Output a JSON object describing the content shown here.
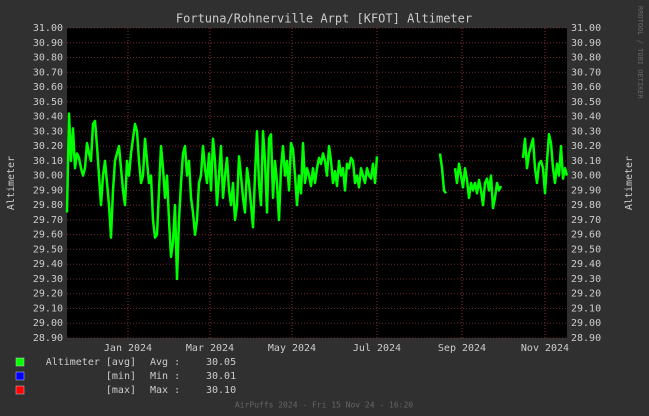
{
  "chart_data": {
    "type": "line",
    "title": "Fortuna/Rohnerville Arpt [KFOT] Altimeter",
    "y_label": "Altimeter",
    "credit": "RRDTOOL / TOBI OETIKER",
    "footer": "AirPuffs 2024 - Fri 15 Nov 24 - 16:20",
    "xlim": [
      0,
      500
    ],
    "xticks": [
      {
        "value": 61,
        "label": "Jan 2024"
      },
      {
        "value": 143,
        "label": "Mar 2024"
      },
      {
        "value": 225,
        "label": "May 2024"
      },
      {
        "value": 310,
        "label": "Jul 2024"
      },
      {
        "value": 395,
        "label": "Sep 2024"
      },
      {
        "value": 478,
        "label": "Nov 2024"
      }
    ],
    "ylim": [
      28.9,
      31.0
    ],
    "yticks": [
      {
        "value": 28.9,
        "label": "28.90"
      },
      {
        "value": 29.0,
        "label": "29.00"
      },
      {
        "value": 29.1,
        "label": "29.10"
      },
      {
        "value": 29.2,
        "label": "29.20"
      },
      {
        "value": 29.3,
        "label": "29.30"
      },
      {
        "value": 29.4,
        "label": "29.40"
      },
      {
        "value": 29.5,
        "label": "29.50"
      },
      {
        "value": 29.6,
        "label": "29.60"
      },
      {
        "value": 29.7,
        "label": "29.70"
      },
      {
        "value": 29.8,
        "label": "29.80"
      },
      {
        "value": 29.9,
        "label": "29.90"
      },
      {
        "value": 30.0,
        "label": "30.00"
      },
      {
        "value": 30.1,
        "label": "30.10"
      },
      {
        "value": 30.2,
        "label": "30.20"
      },
      {
        "value": 30.3,
        "label": "30.30"
      },
      {
        "value": 30.4,
        "label": "30.40"
      },
      {
        "value": 30.5,
        "label": "30.50"
      },
      {
        "value": 30.6,
        "label": "30.60"
      },
      {
        "value": 30.7,
        "label": "30.70"
      },
      {
        "value": 30.8,
        "label": "30.80"
      },
      {
        "value": 30.9,
        "label": "30.90"
      },
      {
        "value": 31.0,
        "label": "31.00"
      }
    ],
    "grid": true,
    "x": [
      0,
      2,
      4,
      6,
      8,
      10,
      12,
      14,
      16,
      18,
      20,
      22,
      24,
      26,
      28,
      30,
      32,
      34,
      36,
      38,
      40,
      42,
      44,
      46,
      48,
      50,
      52,
      54,
      56,
      58,
      60,
      62,
      64,
      66,
      68,
      70,
      72,
      74,
      76,
      78,
      80,
      82,
      84,
      86,
      88,
      90,
      92,
      94,
      96,
      98,
      100,
      102,
      104,
      106,
      108,
      110,
      112,
      114,
      116,
      118,
      120,
      122,
      124,
      126,
      128,
      130,
      132,
      134,
      136,
      138,
      140,
      142,
      144,
      146,
      148,
      150,
      152,
      154,
      156,
      158,
      160,
      162,
      164,
      166,
      168,
      170,
      172,
      174,
      176,
      178,
      180,
      182,
      184,
      186,
      188,
      190,
      192,
      194,
      196,
      198,
      200,
      202,
      204,
      206,
      208,
      210,
      212,
      214,
      216,
      218,
      220,
      222,
      224,
      226,
      228,
      230,
      232,
      234,
      236,
      238,
      240,
      242,
      244,
      246,
      248,
      250,
      252,
      254,
      256,
      258,
      260,
      262,
      264,
      266,
      268,
      270,
      272,
      274,
      276,
      278,
      280,
      282,
      284,
      286,
      288,
      290,
      292,
      294,
      296,
      298,
      300,
      302,
      304,
      306,
      308,
      310,
      340,
      373,
      375,
      377,
      379,
      383,
      388,
      390,
      392,
      394,
      396,
      398,
      400,
      402,
      404,
      406,
      408,
      410,
      412,
      414,
      416,
      418,
      420,
      422,
      424,
      426,
      428,
      430,
      432,
      434,
      445,
      456,
      458,
      460,
      462,
      464,
      466,
      468,
      470,
      472,
      474,
      476,
      478,
      480,
      482,
      484,
      486,
      488,
      490,
      492,
      494,
      496,
      498,
      500
    ],
    "series": [
      {
        "name": "Altimeter [avg]",
        "color": "#00ff00",
        "stat": "Avg :",
        "summary": "30.05",
        "values": [
          29.75,
          30.42,
          30.1,
          30.32,
          30.05,
          30.15,
          30.12,
          30.05,
          30.0,
          30.05,
          30.22,
          30.15,
          30.1,
          30.35,
          30.37,
          30.2,
          30.0,
          29.8,
          30.0,
          30.1,
          29.95,
          29.8,
          29.58,
          29.9,
          30.1,
          30.15,
          30.2,
          30.05,
          29.9,
          29.8,
          30.1,
          30.0,
          30.15,
          30.25,
          30.35,
          30.3,
          30.1,
          29.95,
          30.0,
          30.25,
          30.1,
          29.95,
          30.0,
          29.7,
          29.58,
          29.6,
          29.9,
          30.2,
          30.05,
          29.85,
          30.0,
          29.7,
          29.45,
          29.55,
          29.8,
          29.3,
          29.7,
          29.95,
          30.15,
          30.2,
          30.0,
          30.1,
          29.85,
          29.75,
          29.6,
          29.7,
          29.95,
          30.0,
          30.2,
          30.05,
          29.95,
          30.15,
          29.9,
          30.25,
          30.1,
          29.8,
          30.0,
          30.2,
          29.85,
          30.0,
          30.12,
          29.9,
          29.8,
          29.95,
          29.7,
          29.8,
          30.13,
          30.0,
          29.85,
          29.75,
          30.05,
          29.95,
          29.8,
          29.65,
          30.0,
          30.3,
          29.95,
          29.8,
          30.3,
          30.1,
          29.75,
          30.25,
          30.28,
          29.85,
          30.1,
          29.95,
          29.7,
          30.05,
          30.2,
          30.0,
          30.1,
          29.9,
          30.22,
          30.18,
          30.0,
          29.8,
          30.0,
          29.88,
          30.22,
          29.95,
          30.05,
          30.0,
          29.93,
          30.05,
          29.95,
          30.05,
          30.12,
          30.08,
          30.15,
          30.1,
          30.0,
          30.2,
          30.1,
          29.95,
          30.03,
          29.93,
          30.1,
          30.0,
          30.05,
          29.9,
          30.08,
          30.05,
          30.12,
          30.1,
          29.95,
          30.0,
          29.92,
          30.05,
          30.0,
          29.95,
          30.05,
          30.0,
          29.98,
          30.08,
          29.95,
          30.13,
          null,
          30.15,
          30.05,
          29.9,
          29.88,
          null,
          30.05,
          29.95,
          30.08,
          30.0,
          29.92,
          30.05,
          29.97,
          29.85,
          29.95,
          29.9,
          29.95,
          29.88,
          29.97,
          29.9,
          29.8,
          29.95,
          29.98,
          29.9,
          30.0,
          29.78,
          29.85,
          29.95,
          29.9,
          29.93,
          null,
          30.12,
          30.25,
          30.05,
          30.15,
          30.2,
          30.25,
          30.05,
          29.95,
          30.08,
          30.1,
          30.05,
          29.88,
          30.1,
          30.28,
          30.22,
          30.05,
          29.95,
          30.08,
          30.0,
          30.2,
          29.98,
          30.05,
          30.0
        ]
      },
      {
        "name": "[min]",
        "color": "#0000ff",
        "stat": "Min :",
        "summary": "30.01"
      },
      {
        "name": "[max]",
        "color": "#ff0000",
        "stat": "Max :",
        "summary": "30.10"
      }
    ]
  }
}
